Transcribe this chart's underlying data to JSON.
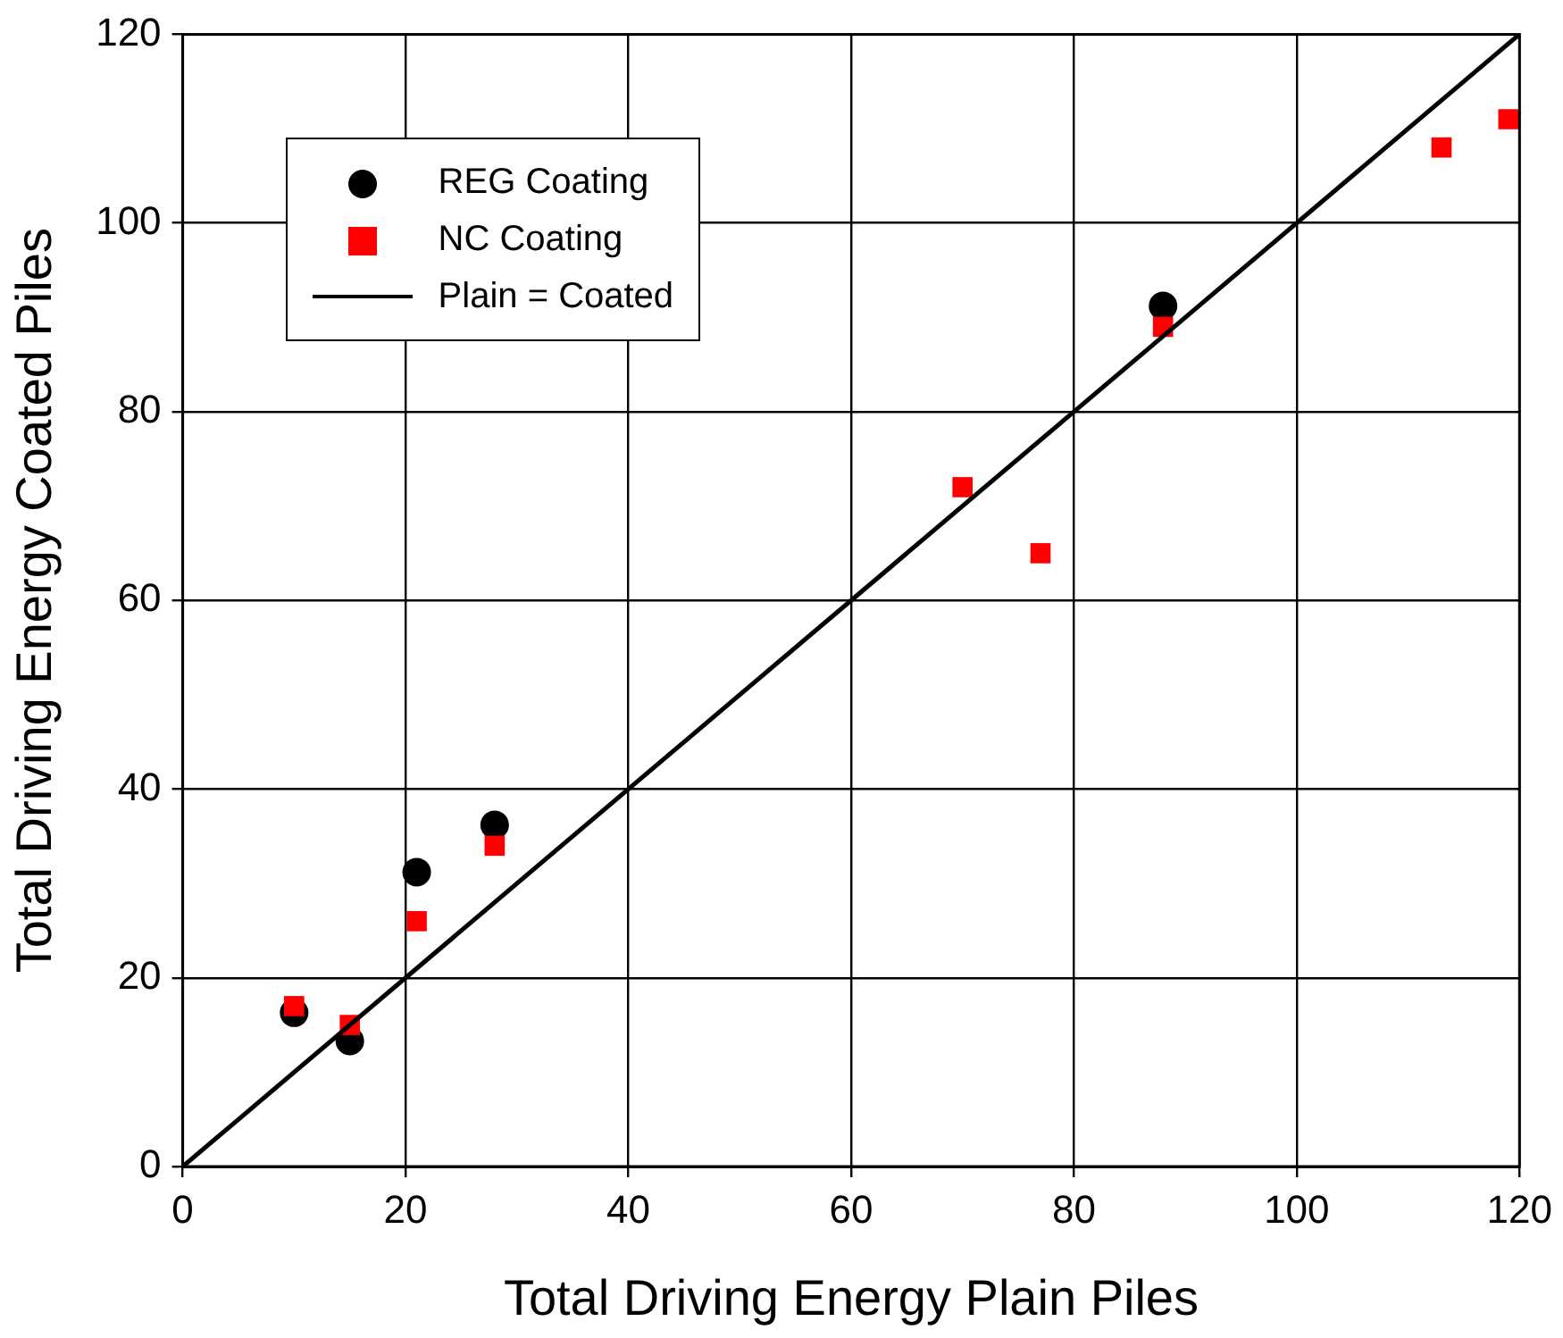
{
  "chart_data": {
    "type": "scatter",
    "xlabel": "Total Driving Energy Plain Piles",
    "ylabel": "Total Driving Energy Coated Piles",
    "xlim": [
      0,
      120
    ],
    "ylim": [
      0,
      120
    ],
    "xticks": [
      0,
      20,
      40,
      60,
      80,
      100,
      120
    ],
    "yticks": [
      0,
      20,
      40,
      60,
      80,
      100,
      120
    ],
    "grid": true,
    "legend": "top left",
    "series": [
      {
        "name": "REG Coating",
        "color": "#000000",
        "marker": "circle",
        "x": [
          10,
          15,
          21,
          28,
          88
        ],
        "values": [
          16.3,
          13.3,
          31.2,
          36.2,
          91.2
        ]
      },
      {
        "name": "NC Coating",
        "color": "#ff0000",
        "marker": "square",
        "x": [
          10,
          15,
          21,
          28,
          70,
          77,
          88,
          113,
          119
        ],
        "values": [
          17,
          15,
          26,
          34,
          72,
          65,
          89,
          108,
          111
        ]
      },
      {
        "name": "Plain = Coated",
        "type": "line",
        "color": "#000000",
        "marker": "none",
        "line_style": "solid",
        "x": [
          0,
          120
        ],
        "values": [
          0,
          120
        ]
      }
    ]
  }
}
